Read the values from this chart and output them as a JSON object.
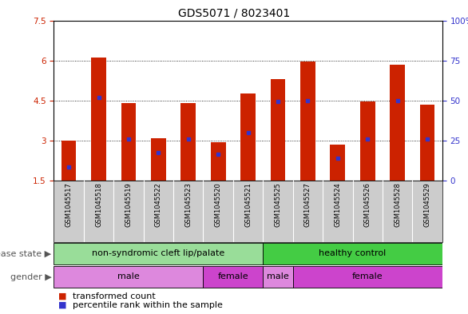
{
  "title": "GDS5071 / 8023401",
  "samples": [
    "GSM1045517",
    "GSM1045518",
    "GSM1045519",
    "GSM1045522",
    "GSM1045523",
    "GSM1045520",
    "GSM1045521",
    "GSM1045525",
    "GSM1045527",
    "GSM1045524",
    "GSM1045526",
    "GSM1045528",
    "GSM1045529"
  ],
  "bar_tops": [
    3.0,
    6.1,
    4.4,
    3.1,
    4.4,
    2.95,
    4.75,
    5.3,
    5.95,
    2.85,
    4.45,
    5.85,
    4.35
  ],
  "bar_base": 1.5,
  "percentile_vals": [
    2.0,
    4.6,
    3.05,
    2.55,
    3.05,
    2.5,
    3.3,
    4.45,
    4.5,
    2.35,
    3.05,
    4.5,
    3.05
  ],
  "ylim_left": [
    1.5,
    7.5
  ],
  "ylim_right": [
    0,
    100
  ],
  "yticks_left": [
    1.5,
    3.0,
    4.5,
    6.0,
    7.5
  ],
  "yticks_right": [
    0,
    25,
    50,
    75,
    100
  ],
  "ytick_labels_left": [
    "1.5",
    "3",
    "4.5",
    "6",
    "7.5"
  ],
  "ytick_labels_right": [
    "0",
    "25",
    "50",
    "75",
    "100%"
  ],
  "bar_color": "#cc2200",
  "dot_color": "#3333cc",
  "gray_box_color": "#cccccc",
  "disease_state_groups": [
    {
      "label": "non-syndromic cleft lip/palate",
      "start": 0,
      "end": 6,
      "color": "#99dd99"
    },
    {
      "label": "healthy control",
      "start": 7,
      "end": 12,
      "color": "#44cc44"
    }
  ],
  "gender_groups": [
    {
      "label": "male",
      "start": 0,
      "end": 4,
      "color": "#dd88dd"
    },
    {
      "label": "female",
      "start": 5,
      "end": 6,
      "color": "#cc44cc"
    },
    {
      "label": "male",
      "start": 7,
      "end": 7,
      "color": "#dd88dd"
    },
    {
      "label": "female",
      "start": 8,
      "end": 12,
      "color": "#cc44cc"
    }
  ],
  "title_fontsize": 10,
  "tick_fontsize": 7.5,
  "sample_fontsize": 6,
  "row_label_fontsize": 8,
  "legend_fontsize": 8,
  "group_label_fontsize": 8
}
